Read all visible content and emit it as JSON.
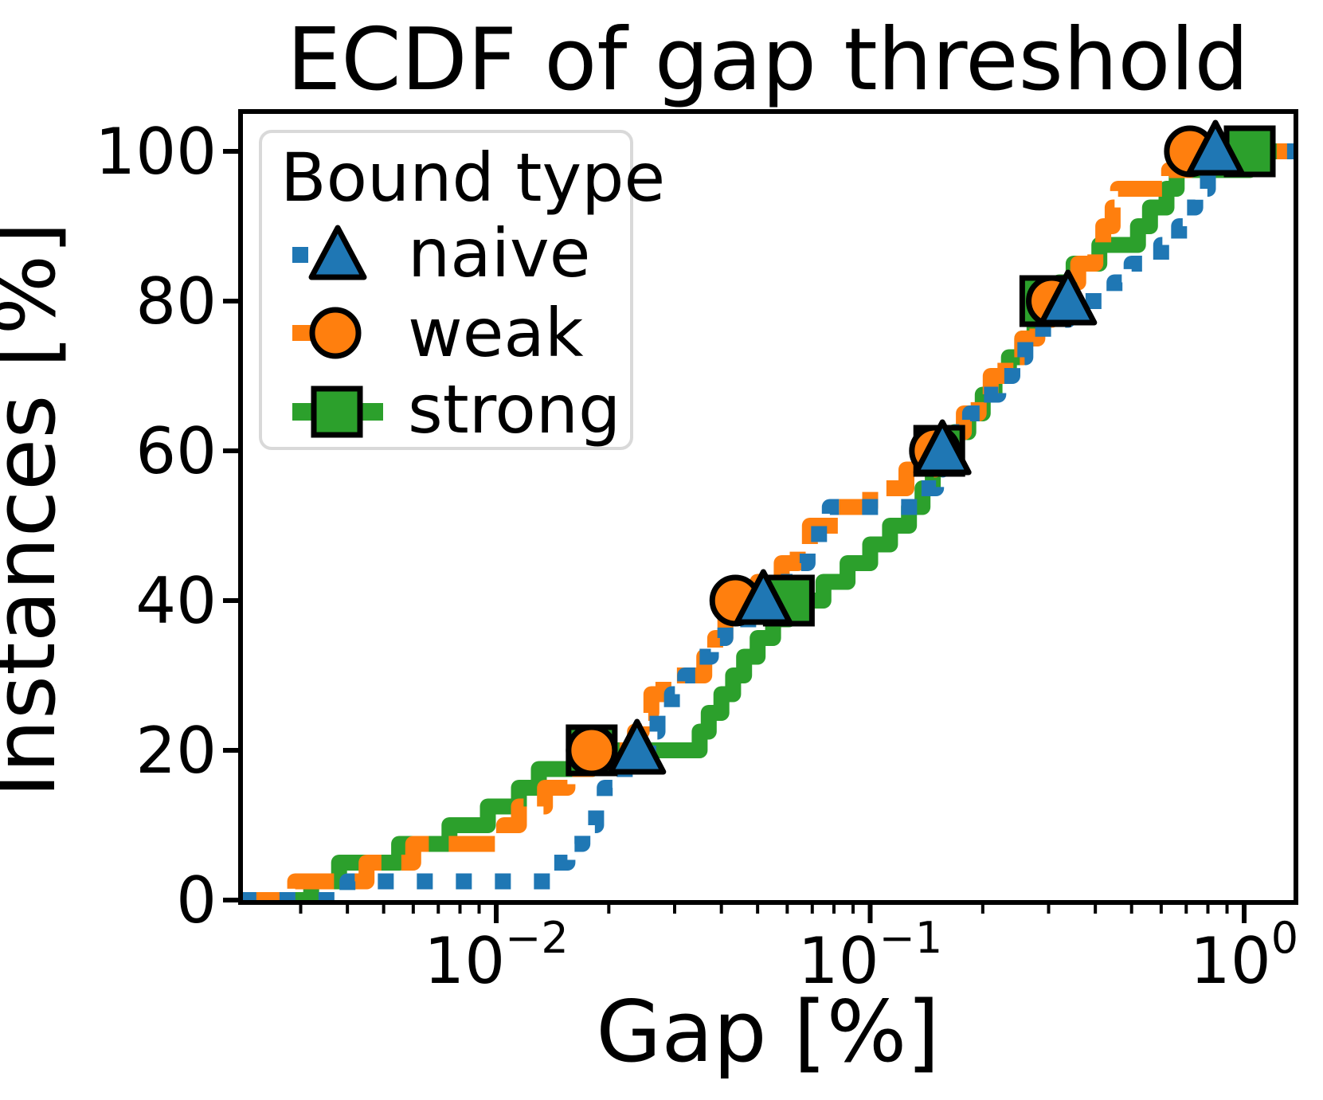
{
  "figure": {
    "title": "ECDF of gap threshold"
  },
  "chart_data": {
    "type": "line",
    "subtype": "ecdf-step",
    "title": "ECDF of gap threshold",
    "xlabel": "Gap [%]",
    "ylabel": "Instances [%]",
    "xscale": "log",
    "xlim": [
      0.00207,
      1.375
    ],
    "ylim": [
      0,
      105.5
    ],
    "grid": false,
    "background": "#ffffff",
    "axis_color": "#000000",
    "legend": {
      "title": "Bound type",
      "position": "upper left",
      "border_color": "#d9d9d9",
      "entries": [
        "naive",
        "weak",
        "strong"
      ]
    },
    "xaxis": {
      "label": "Gap [%]",
      "ticks": [
        {
          "value": 0.01,
          "base": "10",
          "exp": "−2"
        },
        {
          "value": 0.1,
          "base": "10",
          "exp": "−1"
        },
        {
          "value": 1.0,
          "base": "10",
          "exp": "0"
        }
      ],
      "minor_decades": [
        -3,
        -2,
        -1
      ],
      "minor_mantissas": [
        2,
        3,
        4,
        5,
        6,
        7,
        8,
        9
      ]
    },
    "yaxis": {
      "label": "Instances [%]",
      "ticks": [
        0,
        20,
        40,
        60,
        80,
        100
      ]
    },
    "series": [
      {
        "name": "strong",
        "color": "#2ca02c",
        "marker": "square",
        "linestyle": "solid",
        "points": [
          [
            0.0032,
            2.5
          ],
          [
            0.0038,
            5
          ],
          [
            0.0055,
            7.5
          ],
          [
            0.0075,
            10
          ],
          [
            0.0095,
            12.5
          ],
          [
            0.0115,
            15
          ],
          [
            0.013,
            17.5
          ],
          [
            0.018,
            20
          ],
          [
            0.035,
            22.5
          ],
          [
            0.037,
            25
          ],
          [
            0.04,
            27.5
          ],
          [
            0.043,
            30
          ],
          [
            0.046,
            32.5
          ],
          [
            0.05,
            35
          ],
          [
            0.055,
            37.5
          ],
          [
            0.0606,
            40
          ],
          [
            0.075,
            42.5
          ],
          [
            0.087,
            45
          ],
          [
            0.1,
            47.5
          ],
          [
            0.113,
            50
          ],
          [
            0.127,
            52.5
          ],
          [
            0.138,
            55
          ],
          [
            0.147,
            57.5
          ],
          [
            0.153,
            60
          ],
          [
            0.168,
            62.5
          ],
          [
            0.183,
            65
          ],
          [
            0.2,
            67.5
          ],
          [
            0.215,
            70
          ],
          [
            0.235,
            72.5
          ],
          [
            0.255,
            75
          ],
          [
            0.275,
            77.5
          ],
          [
            0.294,
            80
          ],
          [
            0.32,
            82.5
          ],
          [
            0.35,
            85
          ],
          [
            0.41,
            87.5
          ],
          [
            0.52,
            90
          ],
          [
            0.56,
            92.5
          ],
          [
            0.62,
            95
          ],
          [
            0.66,
            97.5
          ],
          [
            1.035,
            100
          ]
        ],
        "marker_points": [
          [
            0.018,
            20
          ],
          [
            0.0606,
            40
          ],
          [
            0.153,
            60
          ],
          [
            0.294,
            80
          ],
          [
            1.035,
            100
          ]
        ]
      },
      {
        "name": "weak",
        "color": "#ff7f0e",
        "marker": "circle",
        "linestyle": "dashed",
        "points": [
          [
            0.0029,
            2.5
          ],
          [
            0.0045,
            5
          ],
          [
            0.006,
            7.5
          ],
          [
            0.0105,
            10
          ],
          [
            0.0115,
            12.5
          ],
          [
            0.0135,
            15
          ],
          [
            0.0155,
            17.5
          ],
          [
            0.018,
            20
          ],
          [
            0.0235,
            22.5
          ],
          [
            0.0245,
            25
          ],
          [
            0.026,
            27.5
          ],
          [
            0.028,
            30
          ],
          [
            0.036,
            32.5
          ],
          [
            0.0385,
            35
          ],
          [
            0.041,
            37.5
          ],
          [
            0.0436,
            40
          ],
          [
            0.05,
            42.5
          ],
          [
            0.058,
            45
          ],
          [
            0.064,
            47.5
          ],
          [
            0.069,
            50
          ],
          [
            0.082,
            52.5
          ],
          [
            0.1,
            55
          ],
          [
            0.125,
            57.5
          ],
          [
            0.149,
            60
          ],
          [
            0.163,
            62.5
          ],
          [
            0.178,
            65
          ],
          [
            0.195,
            67.5
          ],
          [
            0.21,
            70
          ],
          [
            0.23,
            72.5
          ],
          [
            0.255,
            75
          ],
          [
            0.28,
            77.5
          ],
          [
            0.306,
            80
          ],
          [
            0.33,
            82.5
          ],
          [
            0.36,
            85
          ],
          [
            0.4,
            87.5
          ],
          [
            0.42,
            90
          ],
          [
            0.445,
            92.5
          ],
          [
            0.46,
            95
          ],
          [
            0.63,
            97.5
          ],
          [
            0.716,
            100
          ]
        ],
        "marker_points": [
          [
            0.018,
            20
          ],
          [
            0.0436,
            40
          ],
          [
            0.149,
            60
          ],
          [
            0.306,
            80
          ],
          [
            0.716,
            100
          ]
        ]
      },
      {
        "name": "naive",
        "color": "#1f77b4",
        "marker": "triangle",
        "linestyle": "dotted",
        "points": [
          [
            0.004,
            2.5
          ],
          [
            0.014,
            5
          ],
          [
            0.0155,
            7.5
          ],
          [
            0.017,
            10
          ],
          [
            0.0185,
            12.5
          ],
          [
            0.0195,
            15
          ],
          [
            0.021,
            17.5
          ],
          [
            0.0238,
            20
          ],
          [
            0.0255,
            22.5
          ],
          [
            0.027,
            25
          ],
          [
            0.0295,
            27.5
          ],
          [
            0.032,
            30
          ],
          [
            0.0345,
            32.5
          ],
          [
            0.0375,
            35
          ],
          [
            0.041,
            37.5
          ],
          [
            0.0518,
            40
          ],
          [
            0.056,
            42.5
          ],
          [
            0.062,
            45
          ],
          [
            0.068,
            47.5
          ],
          [
            0.073,
            50
          ],
          [
            0.078,
            52.5
          ],
          [
            0.135,
            55
          ],
          [
            0.15,
            57.5
          ],
          [
            0.156,
            60
          ],
          [
            0.17,
            62.5
          ],
          [
            0.185,
            65
          ],
          [
            0.2,
            67.5
          ],
          [
            0.22,
            70
          ],
          [
            0.24,
            72.5
          ],
          [
            0.26,
            75
          ],
          [
            0.29,
            77.5
          ],
          [
            0.338,
            80
          ],
          [
            0.45,
            82.5
          ],
          [
            0.5,
            85
          ],
          [
            0.6,
            87.5
          ],
          [
            0.67,
            90
          ],
          [
            0.7,
            92.5
          ],
          [
            0.74,
            95
          ],
          [
            0.8,
            97.5
          ],
          [
            0.838,
            100
          ]
        ],
        "marker_points": [
          [
            0.0238,
            20
          ],
          [
            0.0518,
            40
          ],
          [
            0.156,
            60
          ],
          [
            0.338,
            80
          ],
          [
            0.838,
            100
          ]
        ]
      }
    ]
  }
}
